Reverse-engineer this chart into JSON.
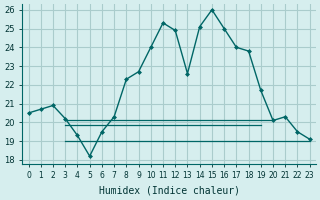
{
  "title": "",
  "xlabel": "Humidex (Indice chaleur)",
  "ylabel": "",
  "background_color": "#d6eeee",
  "grid_color": "#aacccc",
  "line_color": "#006666",
  "xlim": [
    -0.5,
    23.5
  ],
  "ylim": [
    17.8,
    26.3
  ],
  "yticks": [
    18,
    19,
    20,
    21,
    22,
    23,
    24,
    25,
    26
  ],
  "xticks": [
    0,
    1,
    2,
    3,
    4,
    5,
    6,
    7,
    8,
    9,
    10,
    11,
    12,
    13,
    14,
    15,
    16,
    17,
    18,
    19,
    20,
    21,
    22,
    23
  ],
  "main_y": [
    20.5,
    20.7,
    20.9,
    20.2,
    19.3,
    18.2,
    19.5,
    20.3,
    22.3,
    22.7,
    24.0,
    25.3,
    24.9,
    22.6,
    25.1,
    26.0,
    25.0,
    24.0,
    23.8,
    21.7,
    20.1,
    20.3,
    19.5,
    19.1
  ],
  "line2_x": [
    3,
    4,
    5,
    6,
    7,
    8,
    9,
    10,
    11,
    12,
    13,
    14,
    15,
    16,
    17,
    18,
    19,
    20
  ],
  "line2_y": [
    20.1,
    20.1,
    20.1,
    20.1,
    20.1,
    20.1,
    20.1,
    20.1,
    20.1,
    20.1,
    20.1,
    20.1,
    20.1,
    20.1,
    20.1,
    20.1,
    20.1,
    20.1
  ],
  "line3_x": [
    3,
    4,
    5,
    6,
    7,
    8,
    9,
    10,
    11,
    12,
    13,
    14,
    15,
    16,
    17,
    18,
    19
  ],
  "line3_y": [
    19.85,
    19.85,
    19.85,
    19.85,
    19.85,
    19.85,
    19.85,
    19.85,
    19.85,
    19.85,
    19.85,
    19.85,
    19.85,
    19.85,
    19.85,
    19.85,
    19.85
  ],
  "line4_x": [
    3,
    4,
    5,
    6,
    7,
    8,
    9,
    10,
    11,
    12,
    13,
    14,
    15,
    16,
    17,
    18,
    19,
    20,
    21,
    22,
    23
  ],
  "line4_y": [
    19.0,
    19.0,
    19.0,
    19.0,
    19.0,
    19.0,
    19.0,
    19.0,
    19.0,
    19.0,
    19.0,
    19.0,
    19.0,
    19.0,
    19.0,
    19.0,
    19.0,
    19.0,
    19.0,
    19.0,
    19.0
  ]
}
